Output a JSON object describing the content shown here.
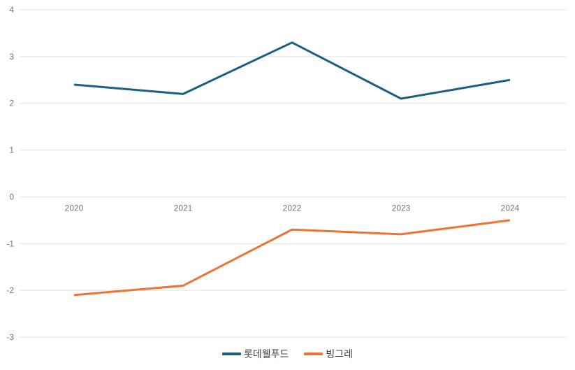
{
  "chart_data": {
    "type": "line",
    "title": "",
    "xlabel": "",
    "ylabel": "",
    "x": [
      "2020",
      "2021",
      "2022",
      "2023",
      "2024"
    ],
    "series": [
      {
        "name": "롯데웰푸드",
        "color": "#1a5f80",
        "values": [
          2.4,
          2.2,
          3.3,
          2.1,
          2.5
        ]
      },
      {
        "name": "빙그레",
        "color": "#ed7434",
        "values": [
          -2.1,
          -1.9,
          -0.7,
          -0.8,
          -0.5
        ]
      }
    ],
    "ylim": [
      -3,
      4
    ],
    "y_ticks": [
      4,
      3,
      2,
      1,
      0,
      -1,
      -2,
      -3
    ],
    "grid": true,
    "legend_position": "bottom"
  },
  "styles": {
    "background": "#ffffff",
    "grid_color": "#e0e0e0",
    "tick_label_color": "#757575",
    "legend_text_color": "#3c4043"
  }
}
